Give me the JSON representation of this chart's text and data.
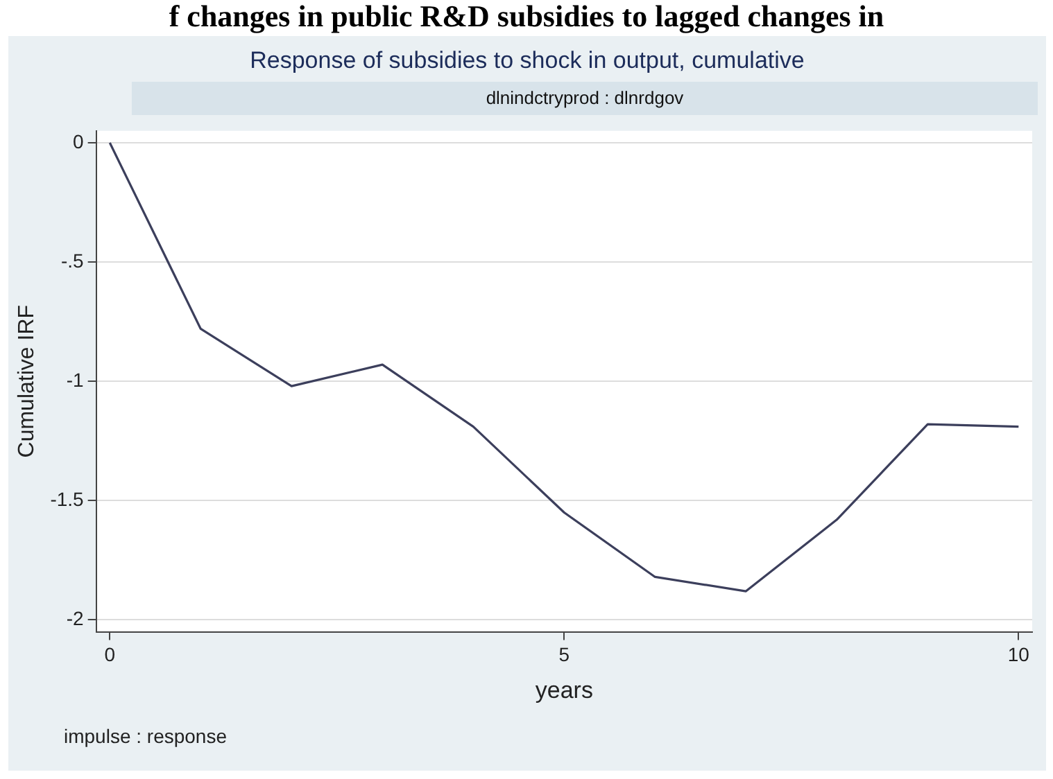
{
  "chart_data": {
    "type": "line",
    "title": "Response of subsidies to shock in output, cumulative",
    "subtitle": "dlnindctryprod : dlnrdgov",
    "xlabel": "years",
    "ylabel": "Cumulative IRF",
    "annotations": [
      "f changes in public R&D subsidies to lagged changes in",
      "impulse : response"
    ],
    "x": [
      0,
      1,
      2,
      3,
      4,
      5,
      6,
      7,
      8,
      9,
      10
    ],
    "series": [
      {
        "color": "#3c3f5c",
        "values": [
          0,
          -0.78,
          -1.02,
          -0.93,
          -1.19,
          -1.55,
          -1.82,
          -1.88,
          -1.58,
          -1.18,
          -1.19
        ]
      }
    ],
    "xlim": [
      -0.15,
      10.15
    ],
    "xticks": [
      0,
      5,
      10
    ],
    "ylim": [
      -2.05,
      0.05
    ],
    "yticks": [
      {
        "value": 0,
        "label": "0"
      },
      {
        "value": -0.5,
        "label": "-.5"
      },
      {
        "value": -1,
        "label": "-1"
      },
      {
        "value": -1.5,
        "label": "-1.5"
      },
      {
        "value": -2,
        "label": "-2"
      }
    ],
    "grid": "y",
    "legend": false,
    "marker": "none",
    "line_style": "solid"
  }
}
